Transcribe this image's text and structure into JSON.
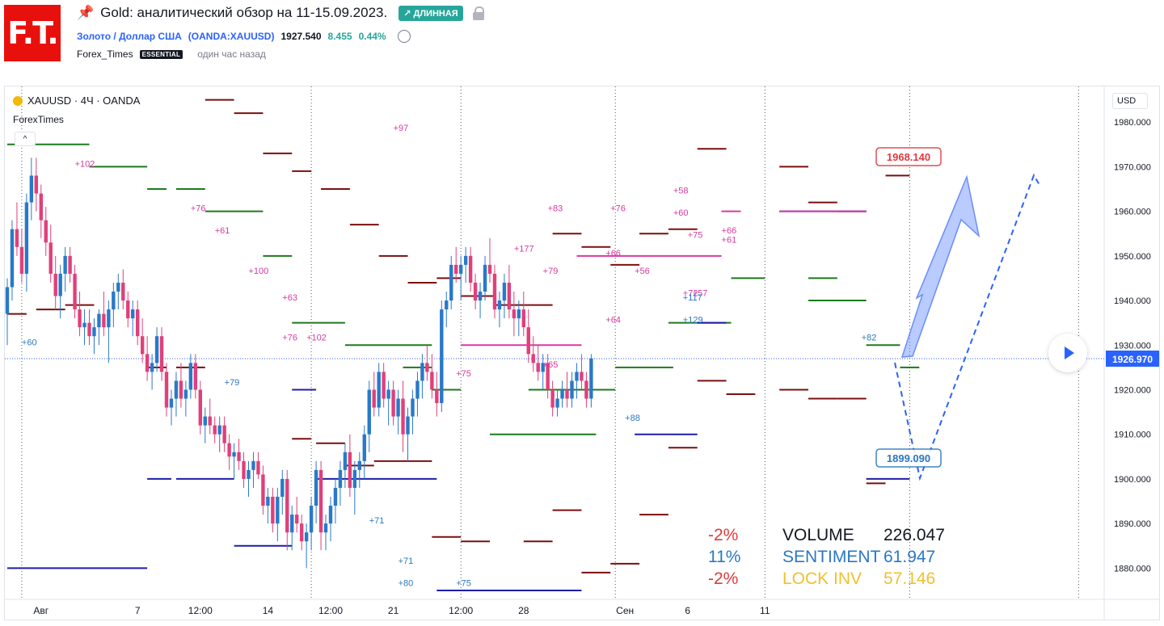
{
  "header": {
    "logo_text": "F.T.",
    "pin_icon": "pushpin-icon",
    "title": "Gold: аналитический обзор на 11-15.09.2023.",
    "badge": "↗ ДЛИННАЯ",
    "symbol_link": "Золото / Доллар США",
    "symbol_code": "(OANDA:XAUUSD)",
    "price": "1927.540",
    "change": "8.455",
    "change_pct": "0.44%",
    "author": "Forex_Times",
    "author_badge": "ESSENTIAL",
    "posted": "один час назад"
  },
  "chart_toolbar": {
    "symbol_legend": "XAUUSD · 4Ч · OANDA",
    "indicator": "ForexTimes",
    "collapse_label": "^",
    "currency": "USD"
  },
  "stats": {
    "rows": [
      {
        "pct": "-2%",
        "label": "VOLUME",
        "value": "226.047"
      },
      {
        "pct": "11%",
        "label": "SENTIMENT",
        "value": "61.947"
      },
      {
        "pct": "-2%",
        "label": "LOCK INV",
        "value": "57.146"
      }
    ]
  },
  "chart_data": {
    "type": "candlestick",
    "title": "XAUUSD · 4Ч · OANDA",
    "ylim": [
      1873,
      1988
    ],
    "y_ticks": [
      "1880.000",
      "1890.000",
      "1900.000",
      "1910.000",
      "1920.000",
      "1930.000",
      "1940.000",
      "1950.000",
      "1960.000",
      "1970.000",
      "1980.000"
    ],
    "x_ticks": [
      {
        "label": "Авг",
        "t": 7
      },
      {
        "label": "7",
        "t": 27
      },
      {
        "label": "12:00",
        "t": 40
      },
      {
        "label": "14",
        "t": 54
      },
      {
        "label": "12:00",
        "t": 67
      },
      {
        "label": "21",
        "t": 80
      },
      {
        "label": "12:00",
        "t": 94
      },
      {
        "label": "28",
        "t": 107
      },
      {
        "label": "Сен",
        "t": 128
      },
      {
        "label": "6",
        "t": 141
      },
      {
        "label": "11",
        "t": 157
      }
    ],
    "current_price": 1926.97,
    "current_price_label": "1926.970",
    "targets": [
      {
        "label": "1968.140",
        "value": 1968.14,
        "color": "#e03a3e"
      },
      {
        "label": "1899.090",
        "value": 1899.09,
        "color": "#2a78c2"
      }
    ],
    "candles": [
      [
        1937,
        1945,
        1930,
        1943
      ],
      [
        1943,
        1958,
        1940,
        1956
      ],
      [
        1956,
        1962,
        1950,
        1952
      ],
      [
        1952,
        1956,
        1944,
        1946
      ],
      [
        1946,
        1964,
        1942,
        1962
      ],
      [
        1962,
        1972,
        1958,
        1968
      ],
      [
        1968,
        1972,
        1960,
        1964
      ],
      [
        1964,
        1966,
        1954,
        1958
      ],
      [
        1958,
        1961,
        1950,
        1953
      ],
      [
        1953,
        1957,
        1944,
        1946
      ],
      [
        1946,
        1950,
        1938,
        1941
      ],
      [
        1941,
        1948,
        1936,
        1946
      ],
      [
        1946,
        1952,
        1942,
        1950
      ],
      [
        1950,
        1952,
        1944,
        1946
      ],
      [
        1946,
        1948,
        1936,
        1938
      ],
      [
        1938,
        1942,
        1932,
        1934
      ],
      [
        1934,
        1938,
        1930,
        1935
      ],
      [
        1935,
        1938,
        1930,
        1932
      ],
      [
        1932,
        1936,
        1928,
        1934
      ],
      [
        1934,
        1938,
        1930,
        1937
      ],
      [
        1937,
        1942,
        1932,
        1934
      ],
      [
        1934,
        1940,
        1926,
        1938
      ],
      [
        1938,
        1944,
        1934,
        1942
      ],
      [
        1942,
        1946,
        1938,
        1944
      ],
      [
        1944,
        1947,
        1938,
        1940
      ],
      [
        1940,
        1942,
        1934,
        1936
      ],
      [
        1936,
        1940,
        1932,
        1938
      ],
      [
        1938,
        1940,
        1930,
        1932
      ],
      [
        1932,
        1936,
        1926,
        1928
      ],
      [
        1928,
        1932,
        1922,
        1924
      ],
      [
        1924,
        1928,
        1920,
        1926
      ],
      [
        1926,
        1934,
        1924,
        1932
      ],
      [
        1932,
        1934,
        1922,
        1924
      ],
      [
        1924,
        1926,
        1914,
        1916
      ],
      [
        1916,
        1920,
        1912,
        1918
      ],
      [
        1918,
        1924,
        1914,
        1922
      ],
      [
        1922,
        1926,
        1916,
        1918
      ],
      [
        1918,
        1922,
        1914,
        1920
      ],
      [
        1920,
        1928,
        1918,
        1926
      ],
      [
        1926,
        1928,
        1918,
        1920
      ],
      [
        1920,
        1922,
        1910,
        1912
      ],
      [
        1912,
        1916,
        1908,
        1914
      ],
      [
        1914,
        1918,
        1910,
        1912
      ],
      [
        1912,
        1914,
        1908,
        1910
      ],
      [
        1910,
        1914,
        1906,
        1912
      ],
      [
        1912,
        1914,
        1906,
        1908
      ],
      [
        1908,
        1910,
        1902,
        1905
      ],
      [
        1905,
        1908,
        1900,
        1906
      ],
      [
        1906,
        1909,
        1902,
        1904
      ],
      [
        1904,
        1906,
        1898,
        1900
      ],
      [
        1900,
        1904,
        1896,
        1902
      ],
      [
        1902,
        1906,
        1898,
        1904
      ],
      [
        1904,
        1906,
        1900,
        1901
      ],
      [
        1901,
        1903,
        1892,
        1894
      ],
      [
        1894,
        1898,
        1890,
        1896
      ],
      [
        1896,
        1898,
        1888,
        1890
      ],
      [
        1890,
        1898,
        1886,
        1896
      ],
      [
        1896,
        1902,
        1892,
        1900
      ],
      [
        1900,
        1902,
        1884,
        1888
      ],
      [
        1888,
        1894,
        1884,
        1892
      ],
      [
        1892,
        1896,
        1888,
        1890
      ],
      [
        1890,
        1892,
        1884,
        1886
      ],
      [
        1886,
        1890,
        1880,
        1888
      ],
      [
        1888,
        1896,
        1884,
        1894
      ],
      [
        1894,
        1904,
        1890,
        1902
      ],
      [
        1902,
        1904,
        1884,
        1888
      ],
      [
        1888,
        1892,
        1884,
        1890
      ],
      [
        1890,
        1896,
        1886,
        1894
      ],
      [
        1894,
        1900,
        1890,
        1898
      ],
      [
        1898,
        1904,
        1894,
        1902
      ],
      [
        1902,
        1908,
        1898,
        1906
      ],
      [
        1906,
        1910,
        1896,
        1898
      ],
      [
        1898,
        1904,
        1892,
        1902
      ],
      [
        1902,
        1906,
        1898,
        1904
      ],
      [
        1904,
        1912,
        1900,
        1910
      ],
      [
        1910,
        1922,
        1906,
        1920
      ],
      [
        1920,
        1924,
        1914,
        1916
      ],
      [
        1916,
        1926,
        1914,
        1924
      ],
      [
        1924,
        1926,
        1916,
        1918
      ],
      [
        1918,
        1922,
        1912,
        1920
      ],
      [
        1920,
        1922,
        1912,
        1914
      ],
      [
        1914,
        1920,
        1910,
        1918
      ],
      [
        1918,
        1922,
        1906,
        1910
      ],
      [
        1910,
        1916,
        1904,
        1914
      ],
      [
        1914,
        1920,
        1910,
        1918
      ],
      [
        1918,
        1924,
        1914,
        1922
      ],
      [
        1922,
        1928,
        1918,
        1926
      ],
      [
        1926,
        1930,
        1922,
        1924
      ],
      [
        1924,
        1928,
        1918,
        1920
      ],
      [
        1920,
        1924,
        1914,
        1917
      ],
      [
        1917,
        1940,
        1915,
        1938
      ],
      [
        1938,
        1942,
        1934,
        1940
      ],
      [
        1940,
        1950,
        1938,
        1948
      ],
      [
        1948,
        1952,
        1944,
        1946
      ],
      [
        1946,
        1950,
        1940,
        1948
      ],
      [
        1948,
        1952,
        1944,
        1950
      ],
      [
        1950,
        1952,
        1942,
        1944
      ],
      [
        1944,
        1946,
        1938,
        1940
      ],
      [
        1940,
        1944,
        1936,
        1942
      ],
      [
        1942,
        1950,
        1940,
        1948
      ],
      [
        1948,
        1954,
        1944,
        1946
      ],
      [
        1946,
        1948,
        1936,
        1938
      ],
      [
        1938,
        1942,
        1934,
        1940
      ],
      [
        1940,
        1946,
        1936,
        1944
      ],
      [
        1944,
        1948,
        1936,
        1938
      ],
      [
        1938,
        1942,
        1932,
        1936
      ],
      [
        1936,
        1940,
        1932,
        1938
      ],
      [
        1938,
        1942,
        1932,
        1934
      ],
      [
        1934,
        1938,
        1926,
        1928
      ],
      [
        1928,
        1932,
        1924,
        1926
      ],
      [
        1926,
        1930,
        1922,
        1924
      ],
      [
        1924,
        1928,
        1920,
        1926
      ],
      [
        1926,
        1928,
        1918,
        1920
      ],
      [
        1920,
        1922,
        1914,
        1916
      ],
      [
        1916,
        1920,
        1914,
        1918
      ],
      [
        1918,
        1922,
        1916,
        1920
      ],
      [
        1920,
        1924,
        1916,
        1918
      ],
      [
        1918,
        1924,
        1916,
        1922
      ],
      [
        1922,
        1926,
        1918,
        1924
      ],
      [
        1924,
        1928,
        1920,
        1922
      ],
      [
        1922,
        1924,
        1916,
        1918
      ],
      [
        1918,
        1928,
        1916,
        1927
      ]
    ]
  },
  "annotations": {
    "pink": [
      "+102",
      "+97",
      "+76",
      "+76",
      "+58",
      "+60",
      "+61",
      "+100",
      "+63",
      "+76",
      "+102",
      "+75",
      "+65",
      "+64",
      "+66",
      "+83",
      "+177",
      "+79",
      "+56",
      "+75",
      "+72",
      "+57",
      "+61",
      "+66"
    ],
    "blue": [
      "+60",
      "+79",
      "+71",
      "+71",
      "+80",
      "+75",
      "+88",
      "+117",
      "+129",
      "+82"
    ]
  }
}
